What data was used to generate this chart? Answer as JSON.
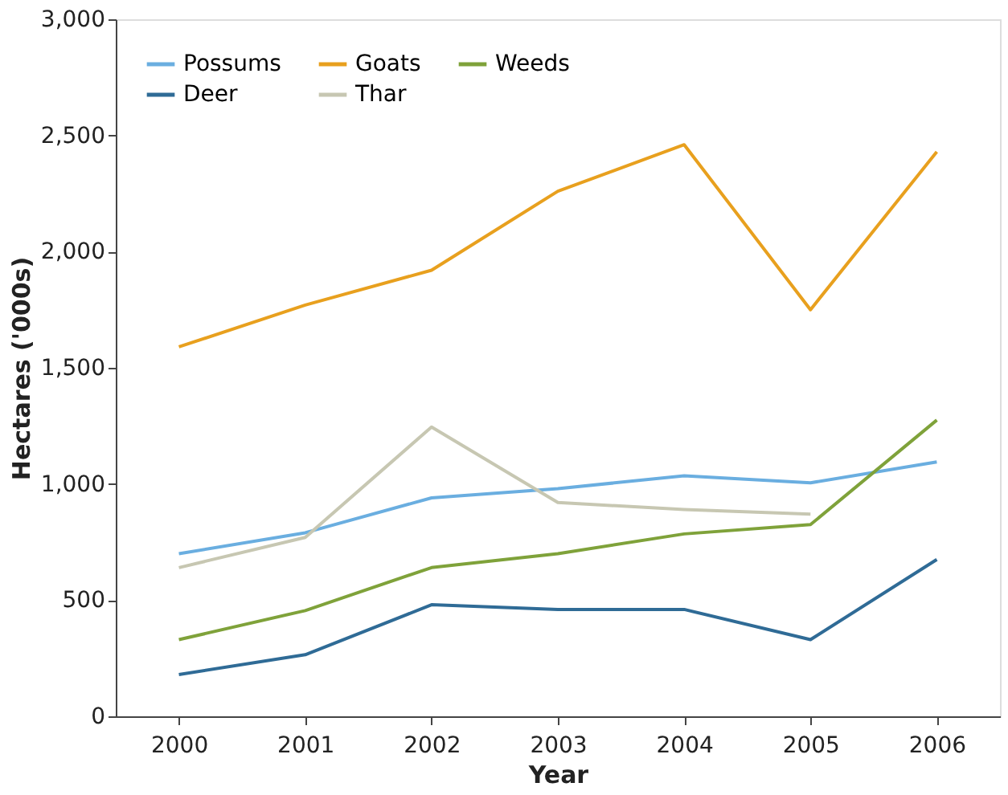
{
  "chart_data": {
    "type": "line",
    "xlabel": "Year",
    "ylabel": "Hectares ('000s)",
    "categories": [
      "2000",
      "2001",
      "2002",
      "2003",
      "2004",
      "2005",
      "2006"
    ],
    "ylim": [
      0,
      3000
    ],
    "yticks": [
      0,
      {
        "value": 500,
        "label": "500"
      },
      {
        "value": 1000,
        "label": "1,000"
      },
      {
        "value": 1500,
        "label": "1,500"
      },
      {
        "value": 2000,
        "label": "2,000"
      },
      {
        "value": 2500,
        "label": "2,500"
      },
      {
        "value": 3000,
        "label": "3,000"
      }
    ],
    "grid": false,
    "legend": "top left",
    "marker": "none",
    "line_style": "solid",
    "series": [
      {
        "name": "Possums",
        "color": "#6aaee0",
        "values": [
          700,
          790,
          940,
          980,
          1035,
          1005,
          1095
        ]
      },
      {
        "name": "Goats",
        "color": "#e8a01e",
        "values": [
          1590,
          1770,
          1920,
          2260,
          2460,
          1750,
          2430
        ]
      },
      {
        "name": "Weeds",
        "color": "#7fa23a",
        "values": [
          330,
          455,
          640,
          700,
          785,
          825,
          1275
        ]
      },
      {
        "name": "Deer",
        "color": "#2f6b96",
        "values": [
          180,
          265,
          480,
          460,
          460,
          330,
          675
        ]
      },
      {
        "name": "Thar",
        "color": "#c7c7b2",
        "values": [
          640,
          770,
          1245,
          920,
          890,
          870,
          null
        ]
      }
    ]
  }
}
